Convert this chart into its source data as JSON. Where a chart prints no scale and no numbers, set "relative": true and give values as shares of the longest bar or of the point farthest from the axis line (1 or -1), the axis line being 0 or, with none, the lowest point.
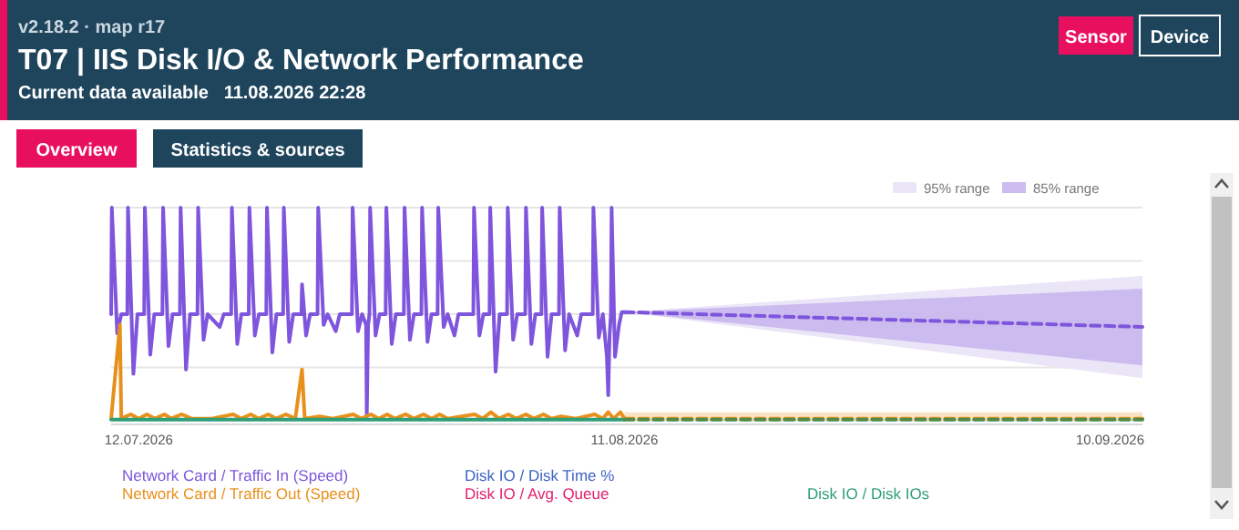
{
  "chart_data": {
    "type": "line",
    "title": "T07 | IIS Disk I/O & Network Performance",
    "subtitle": "Current data available   11.08.2026 22:28",
    "annotations": [
      "v2.18.2 · map r17",
      "Sensor",
      "Device",
      "Overview",
      "Statistics & sources"
    ],
    "relative": true,
    "grid": true,
    "legend": "top right",
    "xlim": [
      "2026-07-10T07:00",
      "2026-09-12T00:00"
    ],
    "xticks": [
      {
        "value": "2026-07-12",
        "label": "12.07.2026"
      },
      {
        "value": "2026-08-11",
        "label": "11.08.2026"
      },
      {
        "value": "2026-09-10",
        "label": "10.09.2026"
      }
    ],
    "series": [
      {
        "name": "95% range",
        "color": "#ebe5f8",
        "x": [
          "2026-08-11T00:00",
          "2026-09-12T00:00"
        ],
        "lower": [
          0.51,
          0.2
        ],
        "upper": [
          0.51,
          0.68
        ],
        "values": [
          null,
          null
        ]
      },
      {
        "name": "85% range",
        "color": "#cbbbef",
        "x": [
          "2026-08-11T00:00",
          "2026-09-12T00:00"
        ],
        "lower": [
          0.51,
          0.26
        ],
        "upper": [
          0.51,
          0.62
        ],
        "values": [
          null,
          null
        ]
      },
      {
        "name": "Network Card / Traffic In (Speed)",
        "color": "#7e55dc",
        "x": [
          "2026-07-10T07:00",
          "2026-07-10T08:00",
          "2026-07-10T16:00",
          "2026-07-10T22:00",
          "2026-07-11T07:00",
          "2026-07-11T08:00",
          "2026-07-11T16:00",
          "2026-07-11T22:00",
          "2026-07-12T08:00",
          "2026-07-12T09:00",
          "2026-07-12T17:00",
          "2026-07-12T23:00",
          "2026-07-13T11:00",
          "2026-07-13T12:00",
          "2026-07-13T20:00",
          "2026-07-14T02:00",
          "2026-07-14T13:00",
          "2026-07-14T14:00",
          "2026-07-14T22:00",
          "2026-07-15T04:00",
          "2026-07-15T15:00",
          "2026-07-15T16:00",
          "2026-07-16T00:00",
          "2026-07-16T06:00",
          "2026-07-17T00:00",
          "2026-07-17T06:00",
          "2026-07-17T17:00",
          "2026-07-17T18:00",
          "2026-07-18T02:00",
          "2026-07-18T08:00",
          "2026-07-18T19:00",
          "2026-07-18T20:00",
          "2026-07-19T04:00",
          "2026-07-19T10:00",
          "2026-07-19T21:00",
          "2026-07-19T22:00",
          "2026-07-20T06:00",
          "2026-07-20T12:00",
          "2026-07-20T22:00",
          "2026-07-20T23:00",
          "2026-07-21T07:00",
          "2026-07-21T13:00",
          "2026-07-22T01:00",
          "2026-07-22T02:00",
          "2026-07-22T08:00",
          "2026-07-22T14:00",
          "2026-07-23T01:00",
          "2026-07-23T02:00",
          "2026-07-23T10:00",
          "2026-07-23T16:00",
          "2026-07-24T04:00",
          "2026-07-24T10:00",
          "2026-07-25T04:00",
          "2026-07-25T05:00",
          "2026-07-25T13:00",
          "2026-07-25T19:00",
          "2026-07-26T01:00",
          "2026-07-26T02:00",
          "2026-07-26T04:00",
          "2026-07-26T06:00",
          "2026-07-26T07:00",
          "2026-07-26T15:00",
          "2026-07-26T21:00",
          "2026-07-27T06:00",
          "2026-07-27T07:00",
          "2026-07-27T15:00",
          "2026-07-27T21:00",
          "2026-07-28T09:00",
          "2026-07-28T10:00",
          "2026-07-28T18:00",
          "2026-07-29T00:00",
          "2026-07-29T11:00",
          "2026-07-29T12:00",
          "2026-07-29T20:00",
          "2026-07-30T02:00",
          "2026-07-30T11:00",
          "2026-07-30T12:00",
          "2026-07-30T20:00",
          "2026-07-31T02:00",
          "2026-07-31T12:00",
          "2026-07-31T18:00",
          "2026-08-01T16:00",
          "2026-08-01T17:00",
          "2026-08-02T01:00",
          "2026-08-02T07:00",
          "2026-08-02T16:00",
          "2026-08-02T17:00",
          "2026-08-03T01:00",
          "2026-08-03T07:00",
          "2026-08-03T18:00",
          "2026-08-03T19:00",
          "2026-08-04T03:00",
          "2026-08-04T09:00",
          "2026-08-04T21:00",
          "2026-08-04T22:00",
          "2026-08-05T06:00",
          "2026-08-05T12:00",
          "2026-08-05T21:00",
          "2026-08-05T22:00",
          "2026-08-06T06:00",
          "2026-08-06T12:00",
          "2026-08-06T23:00",
          "2026-08-07T00:00",
          "2026-08-07T08:00",
          "2026-08-07T14:00",
          "2026-08-08T02:00",
          "2026-08-08T08:00",
          "2026-08-09T01:00",
          "2026-08-09T02:00",
          "2026-08-09T10:00",
          "2026-08-09T16:00",
          "2026-08-09T22:00",
          "2026-08-10T00:00",
          "2026-08-10T02:00",
          "2026-08-10T04:00",
          "2026-08-10T05:00",
          "2026-08-10T10:00",
          "2026-08-10T16:00",
          "2026-08-10T20:00",
          "2026-08-11T00:00"
        ],
        "values": [
          0.5,
          1,
          0.41,
          0.5,
          0.5,
          1,
          0.22,
          0.5,
          0.5,
          1,
          0.31,
          0.5,
          0.5,
          1,
          0.35,
          0.5,
          0.5,
          1,
          0.24,
          0.5,
          0.5,
          1,
          0.38,
          0.5,
          0.44,
          0.5,
          0.5,
          1,
          0.36,
          0.5,
          0.5,
          1,
          0.4,
          0.5,
          0.5,
          1,
          0.32,
          0.5,
          0.5,
          1,
          0.37,
          0.5,
          0.5,
          0.64,
          0.4,
          0.5,
          0.5,
          1,
          0.45,
          0.5,
          0.42,
          0.5,
          0.5,
          1,
          0.42,
          0.5,
          0.45,
          0.02,
          0.45,
          0.5,
          1,
          0.4,
          0.5,
          0.5,
          1,
          0.36,
          0.5,
          0.5,
          1,
          0.38,
          0.5,
          0.5,
          1,
          0.37,
          0.5,
          0.5,
          1,
          0.44,
          0.5,
          0.4,
          0.5,
          0.5,
          1,
          0.4,
          0.5,
          0.5,
          1,
          0.23,
          0.5,
          0.5,
          1,
          0.38,
          0.5,
          0.5,
          1,
          0.36,
          0.5,
          0.5,
          1,
          0.3,
          0.5,
          0.5,
          1,
          0.33,
          0.5,
          0.4,
          0.5,
          0.5,
          1,
          0.39,
          0.5,
          0.3,
          0.12,
          0.4,
          0.5,
          1,
          0.3,
          0.45,
          0.51,
          0.51
        ]
      },
      {
        "name": "Network Card / Traffic Out (Speed)",
        "color": "#e8901c",
        "x": [
          "2026-07-10T07:00",
          "2026-07-10T20:00",
          "2026-07-10T22:00",
          "2026-07-11T12:00",
          "2026-07-12T00:00",
          "2026-07-12T12:00",
          "2026-07-13T00:00",
          "2026-07-13T14:00",
          "2026-07-14T00:00",
          "2026-07-14T16:00",
          "2026-07-15T06:00",
          "2026-07-16T12:00",
          "2026-07-17T20:00",
          "2026-07-18T08:00",
          "2026-07-18T22:00",
          "2026-07-19T10:00",
          "2026-07-20T00:00",
          "2026-07-20T12:00",
          "2026-07-21T02:00",
          "2026-07-21T16:00",
          "2026-07-22T02:00",
          "2026-07-22T06:00",
          "2026-07-23T04:00",
          "2026-07-24T00:00",
          "2026-07-25T06:00",
          "2026-07-25T18:00",
          "2026-07-26T08:00",
          "2026-07-26T20:00",
          "2026-07-27T08:00",
          "2026-07-27T20:00",
          "2026-07-28T12:00",
          "2026-07-29T00:00",
          "2026-07-29T14:00",
          "2026-07-30T02:00",
          "2026-07-30T14:00",
          "2026-07-31T02:00",
          "2026-08-01T18:00",
          "2026-08-02T06:00",
          "2026-08-02T18:00",
          "2026-08-03T06:00",
          "2026-08-03T20:00",
          "2026-08-04T08:00",
          "2026-08-04T22:00",
          "2026-08-05T10:00",
          "2026-08-06T00:00",
          "2026-08-06T12:00",
          "2026-08-07T02:00",
          "2026-08-08T00:00",
          "2026-08-09T04:00",
          "2026-08-09T16:00",
          "2026-08-10T00:00",
          "2026-08-10T08:00",
          "2026-08-10T18:00",
          "2026-08-11T00:00"
        ],
        "values": [
          0.01,
          0.45,
          0.01,
          0.03,
          0.01,
          0.03,
          0.01,
          0.03,
          0.01,
          0.03,
          0.01,
          0.01,
          0.03,
          0.01,
          0.03,
          0.01,
          0.03,
          0.01,
          0.03,
          0.01,
          0.24,
          0.01,
          0.02,
          0.01,
          0.03,
          0.01,
          0.03,
          0.01,
          0.03,
          0.01,
          0.03,
          0.01,
          0.03,
          0.01,
          0.03,
          0.01,
          0.03,
          0.01,
          0.04,
          0.01,
          0.03,
          0.01,
          0.03,
          0.01,
          0.03,
          0.01,
          0.02,
          0.01,
          0.03,
          0.01,
          0.04,
          0.01,
          0.04,
          0.01
        ]
      },
      {
        "name": "Disk IO / Disk Time %",
        "color": "#3f63c4"
      },
      {
        "name": "Disk IO / Avg. Queue",
        "color": "#e3206c"
      },
      {
        "name": "Disk IO / Disk IOs",
        "color": "#2f9f78",
        "x": [
          "2026-07-10T07:00",
          "2026-08-11T00:00"
        ],
        "values": [
          0.005,
          0.005
        ]
      },
      {
        "color": "#7e55dc",
        "line_style": "dashed",
        "x": [
          "2026-08-11T00:00",
          "2026-09-12T00:00"
        ],
        "values": [
          0.51,
          0.44
        ]
      },
      {
        "color": "#e8901c",
        "line_style": "dashed",
        "x": [
          "2026-08-11T00:00",
          "2026-09-12T00:00"
        ],
        "values": [
          0.01,
          0.01
        ],
        "lower": [
          0,
          0
        ],
        "upper": [
          0.04,
          0.04
        ]
      },
      {
        "color": "#4f8a4a",
        "line_style": "dashed",
        "x": [
          "2026-08-11T00:00",
          "2026-09-12T00:00"
        ],
        "values": [
          0.005,
          0.005
        ]
      }
    ]
  }
}
